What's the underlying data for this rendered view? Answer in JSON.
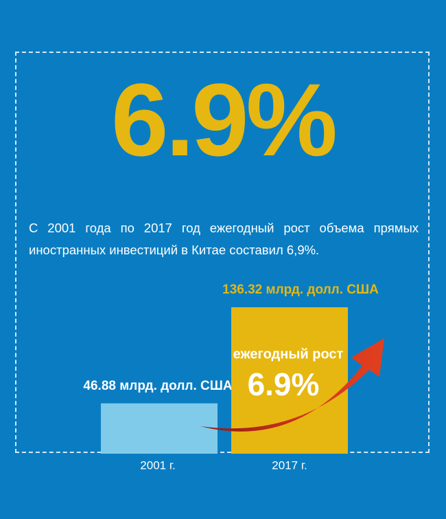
{
  "chart_data": {
    "type": "bar",
    "headline": "6.9%",
    "description": "С 2001 года по 2017 год ежегодный рост объема прямых иностранных инвестиций в Китае составил 6,9%.",
    "categories": [
      "2001 г.",
      "2017 г."
    ],
    "values": [
      46.88,
      136.32
    ],
    "value_labels": [
      "46.88 млрд. долл. США",
      "136.32 млрд. долл. США"
    ],
    "colors": [
      "#80cbea",
      "#e6b711"
    ],
    "annotation": {
      "label": "ежегодный рост",
      "value": "6.9%"
    }
  }
}
